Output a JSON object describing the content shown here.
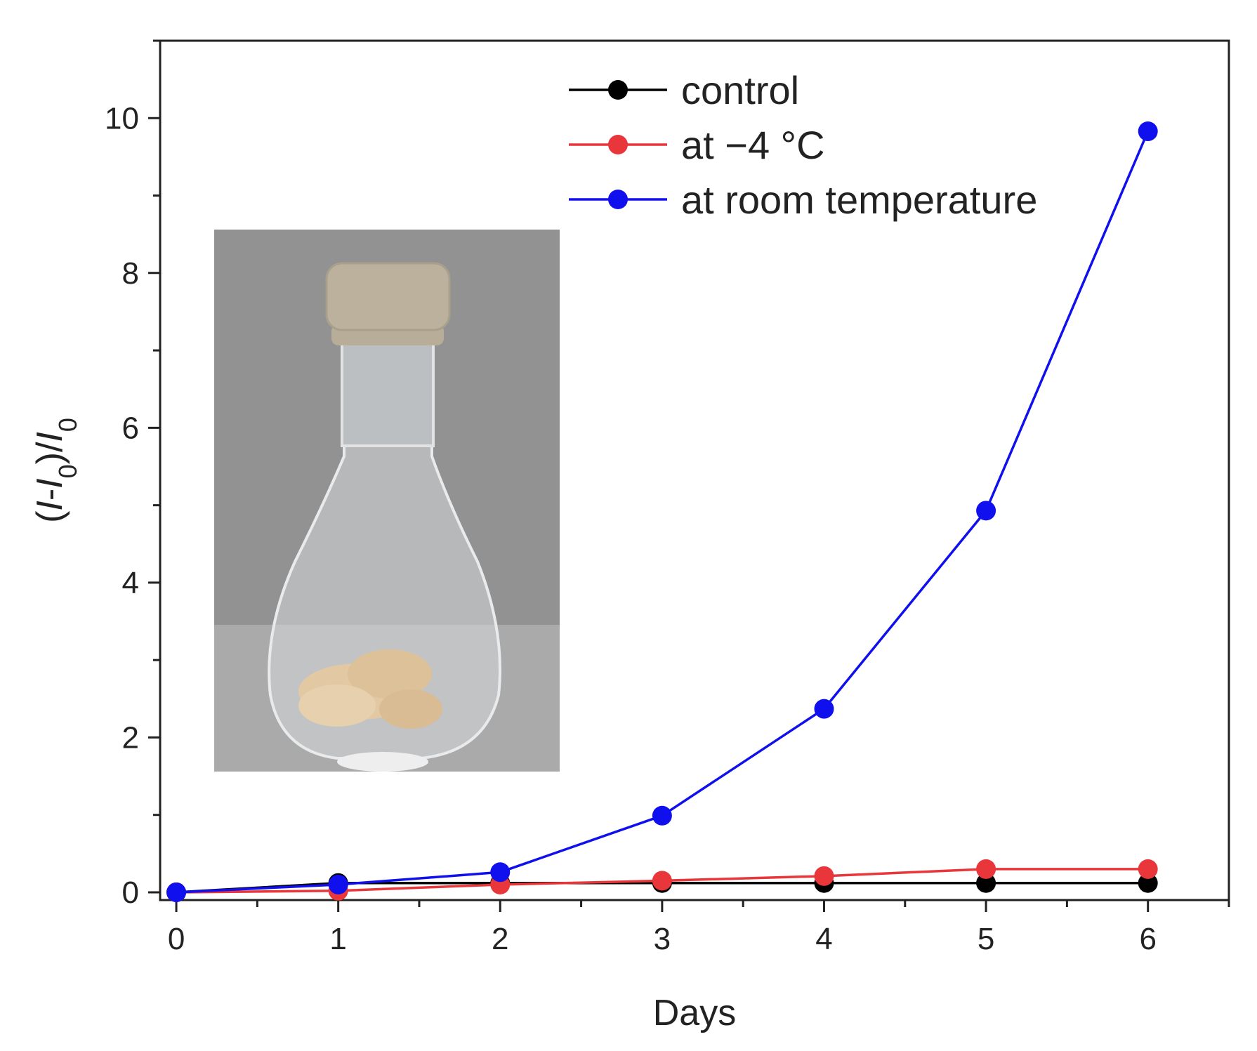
{
  "chart_data": {
    "type": "line",
    "xlabel": "Days",
    "ylabel": {
      "parts": [
        {
          "text": "(",
          "style": "normal"
        },
        {
          "text": "I",
          "style": "italic"
        },
        {
          "text": "-",
          "style": "normal"
        },
        {
          "text": "I",
          "style": "italic"
        },
        {
          "text": "0",
          "style": "sub"
        },
        {
          "text": ")/",
          "style": "normal"
        },
        {
          "text": "I",
          "style": "italic"
        },
        {
          "text": "0",
          "style": "sub"
        }
      ]
    },
    "xlim": [
      -0.1,
      6.5
    ],
    "ylim": [
      -0.1,
      11.0
    ],
    "xticks": [
      0,
      1,
      2,
      3,
      4,
      5,
      6
    ],
    "yticks": [
      0,
      2,
      4,
      6,
      8,
      10
    ],
    "x_minor_step": 0.5,
    "y_minor_step": 1,
    "grid": false,
    "legend_position": "top-right",
    "x": [
      0,
      1,
      2,
      3,
      4,
      5,
      6
    ],
    "series": [
      {
        "name": "control",
        "color": "#000000",
        "values": [
          0.0,
          0.12,
          0.12,
          0.12,
          0.12,
          0.12,
          0.12
        ]
      },
      {
        "name": "at −4 °C",
        "color": "#e8363a",
        "values": [
          0.0,
          0.02,
          0.1,
          0.15,
          0.21,
          0.3,
          0.3
        ]
      },
      {
        "name": "at room temperature",
        "color": "#1010ee",
        "values": [
          0.0,
          0.1,
          0.26,
          0.99,
          2.37,
          4.93,
          9.83
        ]
      }
    ],
    "inset": {
      "type": "photo",
      "subject": "glass flask with stopper containing solid sample"
    }
  }
}
